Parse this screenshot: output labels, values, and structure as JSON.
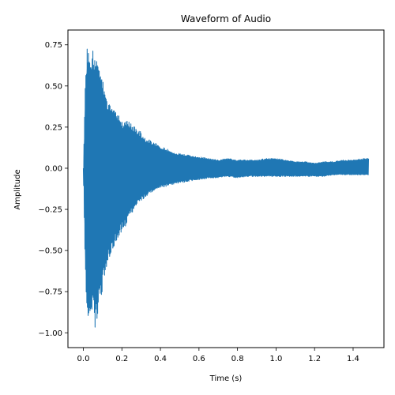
{
  "chart_data": {
    "type": "line",
    "title": "Waveform of Audio",
    "xlabel": "Time (s)",
    "ylabel": "Amplitude",
    "xlim": [
      -0.08,
      1.56
    ],
    "ylim": [
      -1.09,
      0.84
    ],
    "xticks": [
      0.0,
      0.2,
      0.4,
      0.6,
      0.8,
      1.0,
      1.2,
      1.4
    ],
    "xtick_labels": [
      "0.0",
      "0.2",
      "0.4",
      "0.6",
      "0.8",
      "1.0",
      "1.2",
      "1.4"
    ],
    "yticks": [
      0.75,
      0.5,
      0.25,
      0.0,
      -0.25,
      -0.5,
      -0.75,
      -1.0
    ],
    "ytick_labels": [
      "0.75",
      "0.50",
      "0.25",
      "0.00",
      "−0.25",
      "−0.50",
      "−0.75",
      "−1.00"
    ],
    "grid": false,
    "color": "#1f77b4",
    "series": [
      {
        "x": [
          0.0,
          0.01,
          0.02,
          0.03,
          0.04,
          0.05,
          0.06,
          0.07,
          0.08,
          0.09,
          0.1,
          0.12,
          0.14,
          0.16,
          0.18,
          0.2,
          0.22,
          0.25,
          0.28,
          0.3,
          0.32,
          0.35,
          0.38,
          0.4,
          0.43,
          0.46,
          0.5,
          0.55,
          0.6,
          0.65,
          0.7,
          0.75,
          0.8,
          0.85,
          0.9,
          0.95,
          1.0,
          1.05,
          1.1,
          1.15,
          1.2,
          1.25,
          1.3,
          1.35,
          1.4,
          1.45,
          1.48
        ],
        "upper": [
          0.0,
          0.52,
          0.75,
          0.68,
          0.62,
          0.72,
          0.65,
          0.7,
          0.68,
          0.58,
          0.55,
          0.42,
          0.38,
          0.35,
          0.33,
          0.28,
          0.3,
          0.27,
          0.24,
          0.22,
          0.18,
          0.17,
          0.15,
          0.13,
          0.12,
          0.1,
          0.09,
          0.08,
          0.07,
          0.06,
          0.05,
          0.06,
          0.05,
          0.05,
          0.05,
          0.06,
          0.06,
          0.05,
          0.04,
          0.04,
          0.03,
          0.04,
          0.04,
          0.05,
          0.05,
          0.06,
          0.06
        ],
        "lower": [
          0.0,
          -0.65,
          -1.0,
          -0.95,
          -0.9,
          -0.8,
          -0.98,
          -0.95,
          -0.85,
          -0.82,
          -0.75,
          -0.6,
          -0.55,
          -0.48,
          -0.42,
          -0.38,
          -0.35,
          -0.28,
          -0.22,
          -0.2,
          -0.18,
          -0.15,
          -0.13,
          -0.12,
          -0.11,
          -0.1,
          -0.09,
          -0.08,
          -0.07,
          -0.06,
          -0.06,
          -0.05,
          -0.06,
          -0.05,
          -0.05,
          -0.05,
          -0.05,
          -0.05,
          -0.05,
          -0.05,
          -0.05,
          -0.05,
          -0.04,
          -0.04,
          -0.04,
          -0.04,
          -0.04
        ]
      }
    ]
  }
}
